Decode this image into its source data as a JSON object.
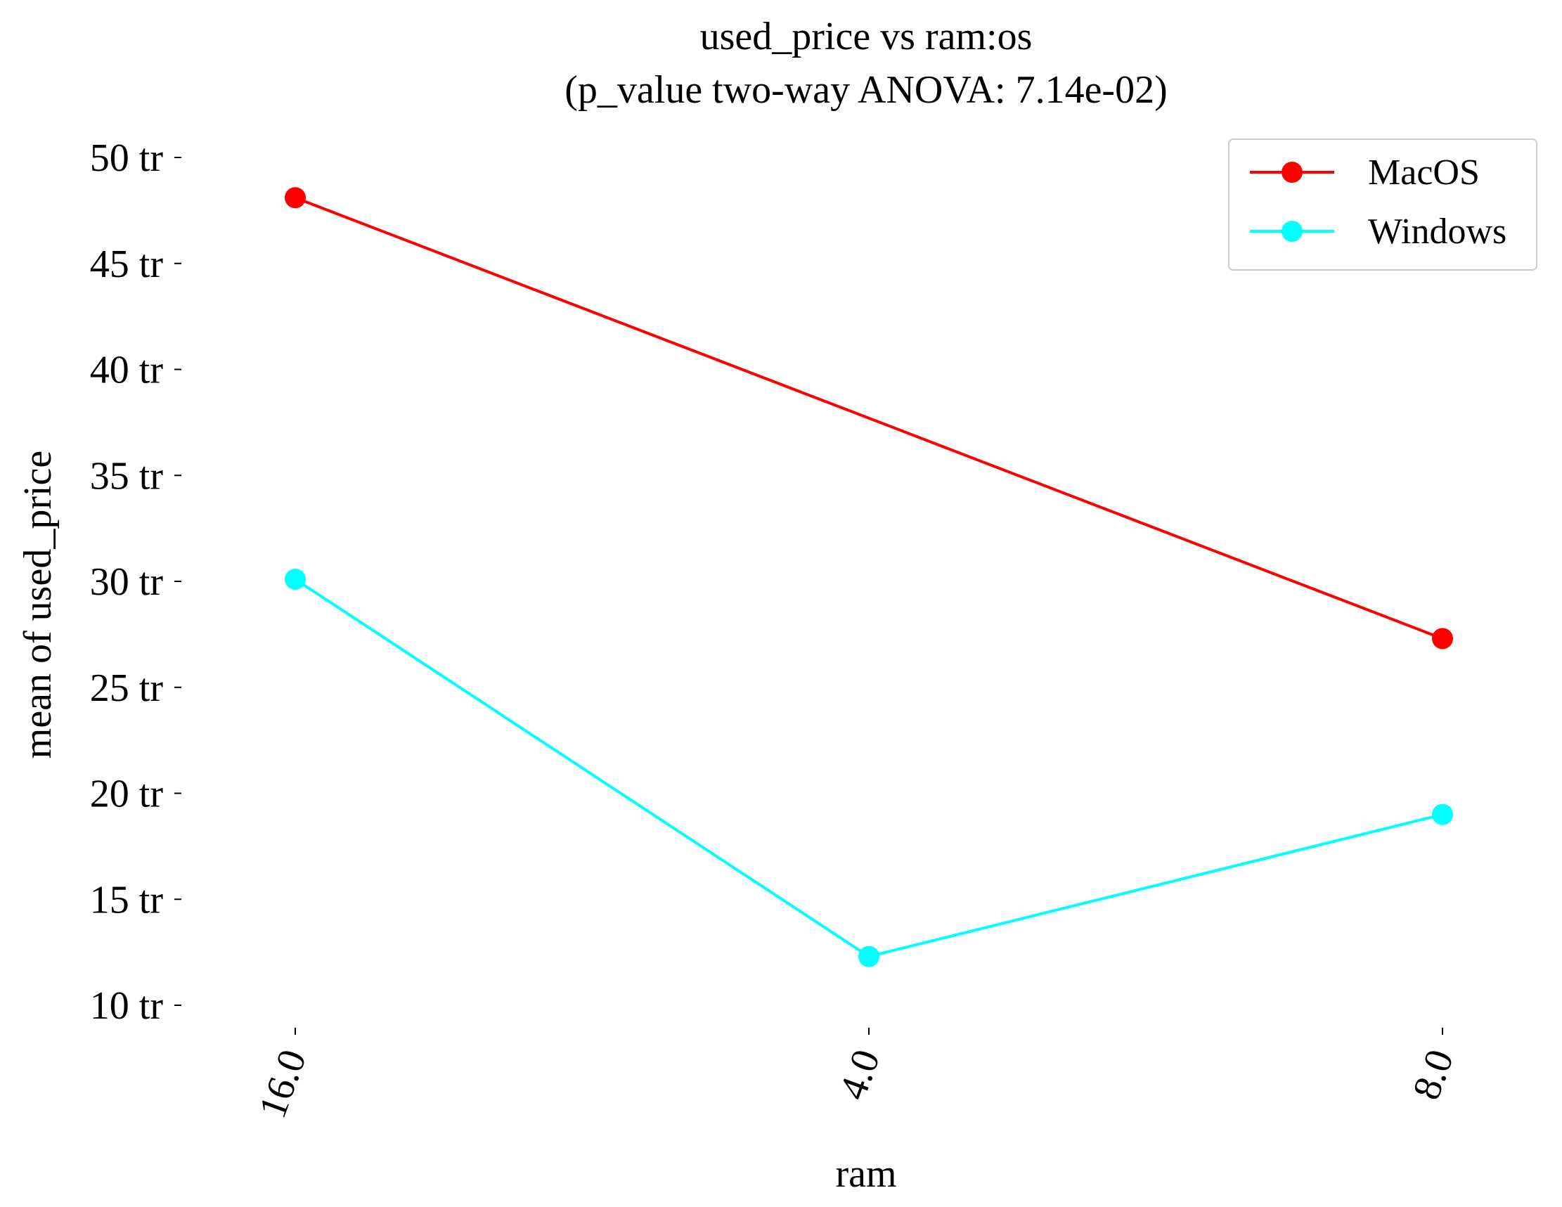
{
  "chart_data": {
    "type": "line",
    "title_line1": "used_price vs ram:os",
    "title_line2": "(p_value two-way ANOVA: 7.14e-02)",
    "xlabel": "ram",
    "ylabel": "mean of used_price",
    "categories": [
      "16.0",
      "4.0",
      "8.0"
    ],
    "y_ticks": [
      10,
      15,
      20,
      25,
      30,
      35,
      40,
      45,
      50
    ],
    "y_tick_labels": [
      "10 tr",
      "15 tr",
      "20 tr",
      "25 tr",
      "30 tr",
      "35 tr",
      "40 tr",
      "45 tr",
      "50 tr"
    ],
    "ylim": [
      8,
      50.5
    ],
    "y_unit_suffix": "tr",
    "grid": false,
    "legend_position": "top-right",
    "series": [
      {
        "name": "MacOS",
        "color": "#ff0000",
        "values": [
          48.1,
          null,
          27.3
        ]
      },
      {
        "name": "Windows",
        "color": "#00ffff",
        "values": [
          30.1,
          12.3,
          19.0
        ]
      }
    ]
  }
}
